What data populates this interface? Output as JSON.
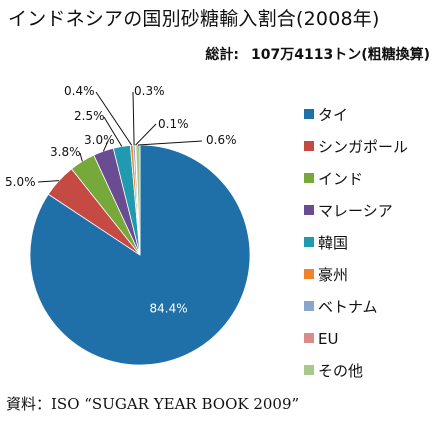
{
  "title": "インドネシアの国別砂糖輸入割合(2008年)",
  "total": {
    "label": "総計:",
    "value": "107万4113トン(粗糖換算)"
  },
  "source": "資料：ISO “SUGAR YEAR BOOK 2009”",
  "chart_data": {
    "type": "pie",
    "title": "インドネシアの国別砂糖輸入割合(2008年)",
    "unit": "%",
    "total": "107万4113トン(粗糖換算)",
    "legend_position": "right",
    "slices": [
      {
        "name": "タイ",
        "value": 84.4,
        "label": "84.4%",
        "color": "#1f6fa8"
      },
      {
        "name": "シンガポール",
        "value": 5.0,
        "label": "5.0%",
        "color": "#c64a44"
      },
      {
        "name": "インド",
        "value": 3.8,
        "label": "3.8%",
        "color": "#77a83a"
      },
      {
        "name": "マレーシア",
        "value": 3.0,
        "label": "3.0%",
        "color": "#6a4c93"
      },
      {
        "name": "韓国",
        "value": 2.5,
        "label": "2.5%",
        "color": "#1f9aae"
      },
      {
        "name": "豪州",
        "value": 0.4,
        "label": "0.4%",
        "color": "#f0842d"
      },
      {
        "name": "ベトナム",
        "value": 0.3,
        "label": "0.3%",
        "color": "#8aa6cc"
      },
      {
        "name": "EU",
        "value": 0.1,
        "label": "0.1%",
        "color": "#d98c8a"
      },
      {
        "name": "その他",
        "value": 0.6,
        "label": "0.6%",
        "color": "#a9c98c"
      }
    ]
  }
}
